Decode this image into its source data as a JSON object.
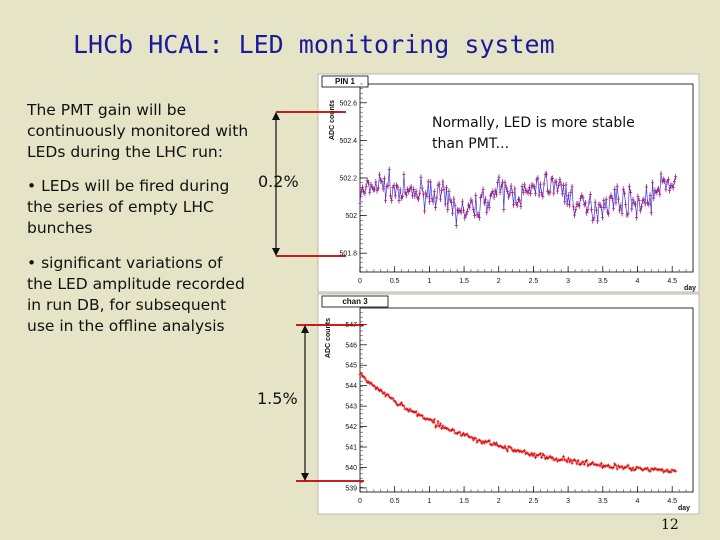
{
  "slide": {
    "title": "LHCb HCAL: LED monitoring system",
    "intro": [
      "The PMT gain will be",
      "continuously monitored with",
      "LEDs during the LHC run:"
    ],
    "bullet1": [
      "• LEDs will be fired during",
      "the series of empty LHC",
      "bunches"
    ],
    "bullet2": [
      "• significant variations of",
      "the LED amplitude recorded",
      "in run DB, for subsequent",
      "use in the offline analysis"
    ],
    "pct_top": "0.2%",
    "pct_bottom": "1.5%",
    "note": "Normally, LED is more stable than PMT...",
    "page_number": "12"
  },
  "chart_data": [
    {
      "type": "scatter",
      "title": "PIN 1",
      "xlabel": "day",
      "ylabel": "ADC counts",
      "xlim": [
        0,
        4.8
      ],
      "ylim": [
        501.7,
        502.7
      ],
      "xticks": [
        "0",
        "0.5",
        "1",
        "1.5",
        "2",
        "2.5",
        "3",
        "3.5",
        "4",
        "4.5"
      ],
      "yticks": [
        "501.8",
        "502",
        "502.2",
        "502.4",
        "502.6"
      ],
      "series": [
        {
          "color": "#9c1f86",
          "x_range": [
            0,
            4.55
          ],
          "mean": 502.1,
          "spread": 0.12
        }
      ]
    },
    {
      "type": "scatter",
      "title": "chan 3",
      "xlabel": "day",
      "ylabel": "ADC counts",
      "xlim": [
        0,
        4.8
      ],
      "ylim": [
        538.8,
        547.8
      ],
      "xticks": [
        "0",
        "0.5",
        "1",
        "1.5",
        "2",
        "2.5",
        "3",
        "3.5",
        "4",
        "4.5"
      ],
      "yticks": [
        "539",
        "540",
        "541",
        "542",
        "543",
        "544",
        "545",
        "546",
        "547"
      ],
      "series": [
        {
          "color": "#e01010",
          "x_range": [
            0,
            4.55
          ],
          "start": 544.8,
          "end": 539.3
        }
      ]
    }
  ]
}
